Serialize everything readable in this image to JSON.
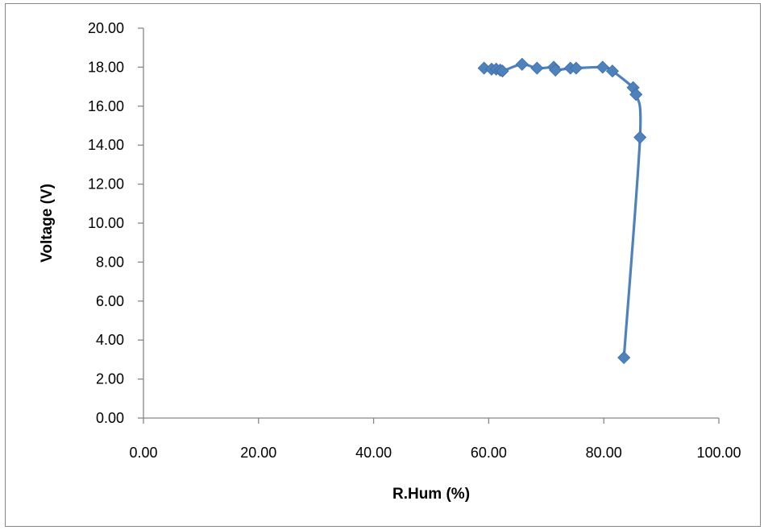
{
  "chart_data": {
    "type": "scatter",
    "title": "",
    "xlabel": "R.Hum (%)",
    "ylabel": "Voltage (V)",
    "xlim": [
      0,
      100
    ],
    "ylim": [
      0,
      20
    ],
    "x_ticks": [
      "0.00",
      "20.00",
      "40.00",
      "60.00",
      "80.00",
      "100.00"
    ],
    "y_ticks": [
      "0.00",
      "2.00",
      "4.00",
      "6.00",
      "8.00",
      "10.00",
      "12.00",
      "14.00",
      "16.00",
      "18.00",
      "20.00"
    ],
    "grid": false,
    "legend": "none",
    "marker": "diamond",
    "smoothed_line": true,
    "series": [
      {
        "color": "#4f81bd",
        "points": [
          {
            "x": 59.2,
            "y": 17.95
          },
          {
            "x": 60.5,
            "y": 17.9
          },
          {
            "x": 61.3,
            "y": 17.9
          },
          {
            "x": 62.0,
            "y": 17.85
          },
          {
            "x": 62.4,
            "y": 17.8
          },
          {
            "x": 65.8,
            "y": 18.15
          },
          {
            "x": 68.4,
            "y": 17.95
          },
          {
            "x": 71.3,
            "y": 18.0
          },
          {
            "x": 71.6,
            "y": 17.85
          },
          {
            "x": 74.2,
            "y": 17.95
          },
          {
            "x": 75.2,
            "y": 17.95
          },
          {
            "x": 79.8,
            "y": 18.0
          },
          {
            "x": 81.5,
            "y": 17.8
          },
          {
            "x": 85.1,
            "y": 16.95
          },
          {
            "x": 85.6,
            "y": 16.6
          },
          {
            "x": 86.3,
            "y": 14.4
          },
          {
            "x": 83.5,
            "y": 3.1
          }
        ]
      }
    ]
  }
}
